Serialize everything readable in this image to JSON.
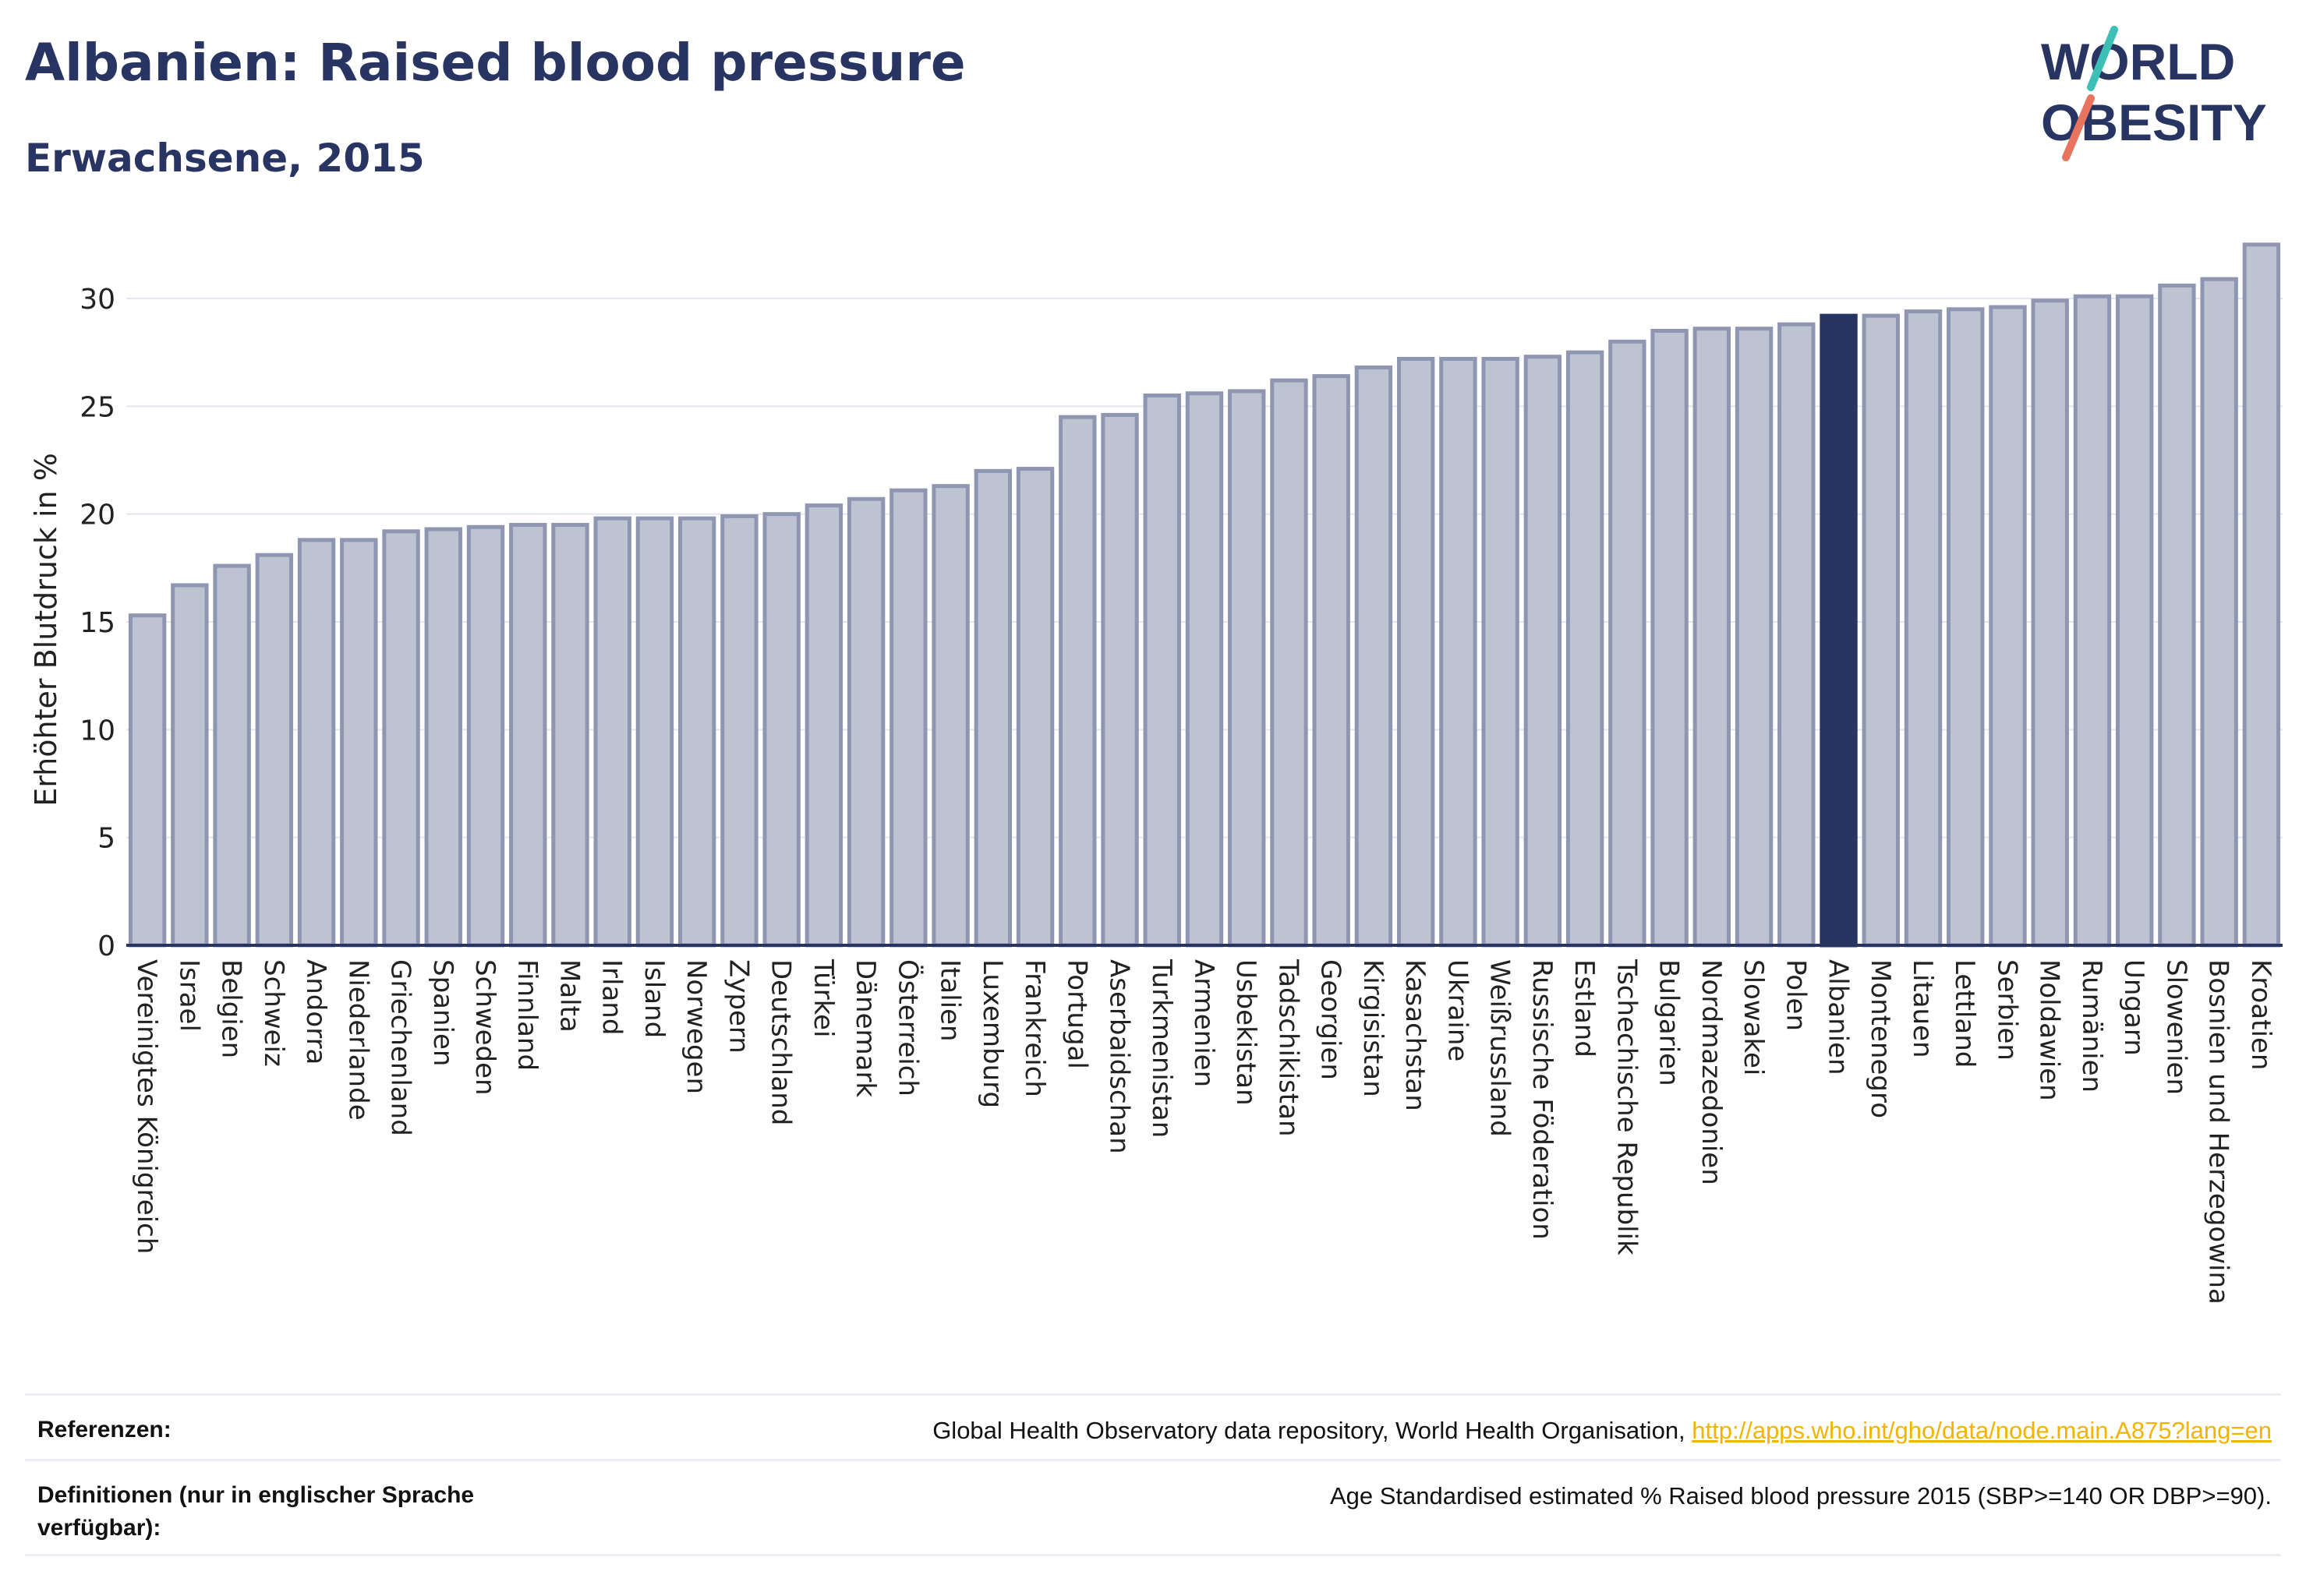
{
  "header": {
    "title": "Albanien: Raised blood pressure",
    "subtitle": "Erwachsene, 2015",
    "logo_line1": "WORLD",
    "logo_line2": "OBESITY"
  },
  "colors": {
    "bar": "#bec3d1",
    "bar_stroke": "#8f96b2",
    "highlight": "#283462",
    "axis": "#283462",
    "grid": "#e4e6ee",
    "link": "#f2b400",
    "logo_teal": "#3cbfb4",
    "logo_coral": "#e8735f"
  },
  "chart_data": {
    "type": "bar",
    "ylabel": "Erhöhter Blutdruck in %",
    "ylim": [
      0,
      33
    ],
    "yticks": [
      0,
      5,
      10,
      15,
      20,
      25,
      30
    ],
    "grid": true,
    "highlight": "Albanien",
    "categories": [
      "Vereinigtes Königreich",
      "Israel",
      "Belgien",
      "Schweiz",
      "Andorra",
      "Niederlande",
      "Griechenland",
      "Spanien",
      "Schweden",
      "Finnland",
      "Malta",
      "Irland",
      "Island",
      "Norwegen",
      "Zypern",
      "Deutschland",
      "Türkei",
      "Dänemark",
      "Österreich",
      "Italien",
      "Luxemburg",
      "Frankreich",
      "Portugal",
      "Aserbaidschan",
      "Turkmenistan",
      "Armenien",
      "Usbekistan",
      "Tadschikistan",
      "Georgien",
      "Kirgisistan",
      "Kasachstan",
      "Ukraine",
      "Weißrussland",
      "Russische Föderation",
      "Estland",
      "Tschechische Republik",
      "Bulgarien",
      "Nordmazedonien",
      "Slowakei",
      "Polen",
      "Albanien",
      "Montenegro",
      "Litauen",
      "Lettland",
      "Serbien",
      "Moldawien",
      "Rumänien",
      "Ungarn",
      "Slowenien",
      "Bosnien und Herzegowina",
      "Kroatien"
    ],
    "values": [
      15.3,
      16.7,
      17.6,
      18.1,
      18.8,
      18.8,
      19.2,
      19.3,
      19.4,
      19.5,
      19.5,
      19.8,
      19.8,
      19.8,
      19.9,
      20.0,
      20.4,
      20.7,
      21.1,
      21.3,
      22.0,
      22.1,
      24.5,
      24.6,
      25.5,
      25.6,
      25.7,
      26.2,
      26.4,
      26.8,
      27.2,
      27.2,
      27.2,
      27.3,
      27.5,
      28.0,
      28.5,
      28.6,
      28.6,
      28.8,
      29.2,
      29.2,
      29.4,
      29.5,
      29.6,
      29.9,
      30.1,
      30.1,
      30.6,
      30.9,
      32.5
    ]
  },
  "footer": {
    "references_label": "Referenzen:",
    "references_text": "Global Health Observatory data repository, World Health Organisation, ",
    "references_link": "http://apps.who.int/gho/data/node.main.A875?lang=en",
    "definitions_label": "Definitionen (nur in englischer Sprache verfügbar):",
    "definitions_text": "Age Standardised estimated % Raised blood pressure 2015 (SBP>=140 OR DBP>=90)."
  }
}
